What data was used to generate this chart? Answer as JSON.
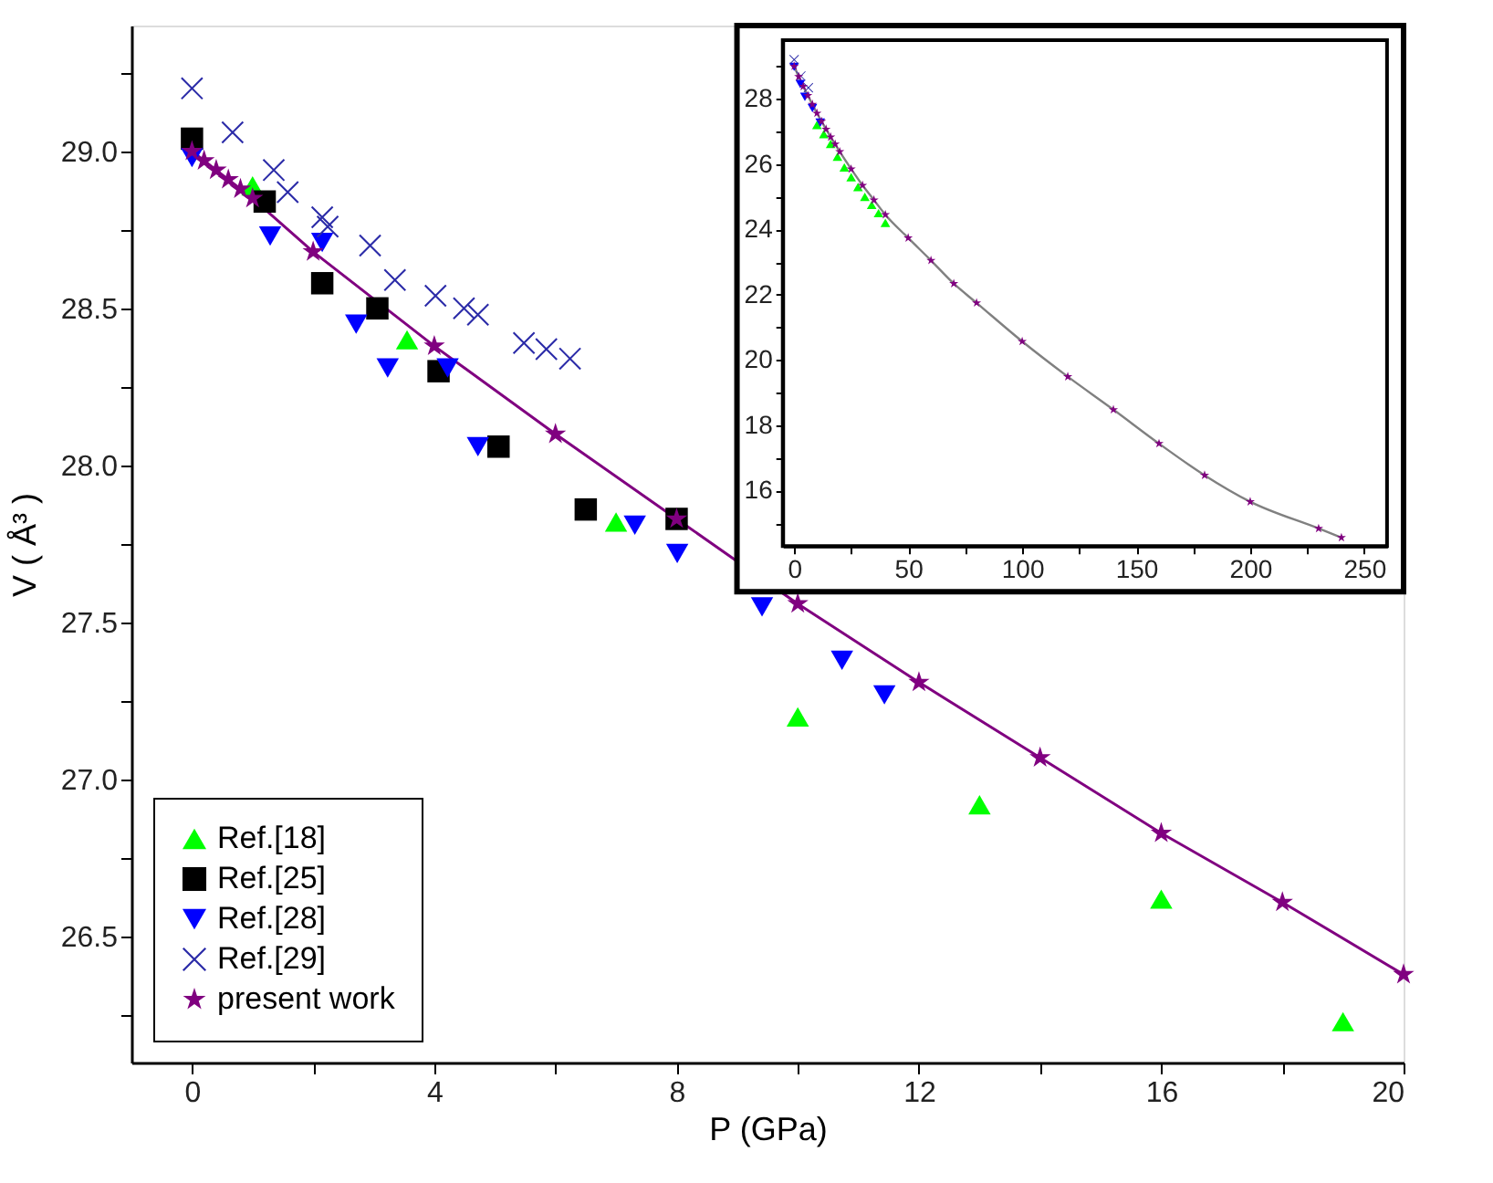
{
  "chart_data": [
    {
      "type": "scatter",
      "xlabel": "P (GPa)",
      "ylabel": "V ( Å³ )",
      "xlim": [
        -1,
        20
      ],
      "xticks": [
        0,
        {
          "value": 2,
          "label": null
        },
        4,
        {
          "value": 6,
          "label": null
        },
        8,
        {
          "value": 10,
          "label": null
        },
        12,
        {
          "value": 14,
          "label": null
        },
        16,
        {
          "value": 18,
          "label": null
        },
        20
      ],
      "ylim": [
        26.1,
        29.4
      ],
      "yticks": [
        {
          "value": 26.25,
          "label": null
        },
        {
          "value": 26.5,
          "label": "26.5"
        },
        {
          "value": 26.75,
          "label": null
        },
        {
          "value": 27,
          "label": "27.0"
        },
        {
          "value": 27.25,
          "label": null
        },
        {
          "value": 27.5,
          "label": "27.5"
        },
        {
          "value": 27.75,
          "label": null
        },
        {
          "value": 28,
          "label": "28.0"
        },
        {
          "value": 28.25,
          "label": null
        },
        {
          "value": 28.5,
          "label": "28.5"
        },
        {
          "value": 28.75,
          "label": null
        },
        {
          "value": 29,
          "label": "29.0"
        },
        {
          "value": 29.25,
          "label": null
        }
      ],
      "grid": false,
      "legend": "bottom left",
      "series": [
        {
          "name": "Ref.[18]",
          "type": "scatter",
          "marker": "triangle",
          "color": "#00ff00",
          "x": [
            1.0,
            3.55,
            7,
            10,
            13,
            16,
            19
          ],
          "values": [
            28.89,
            28.4,
            27.82,
            27.2,
            26.92,
            26.62,
            26.23
          ]
        },
        {
          "name": "Ref.[25]",
          "type": "scatter",
          "marker": "square",
          "color": "#000000",
          "x": [
            0,
            1.2,
            2.15,
            3.06,
            4.07,
            5.06,
            6.5,
            8.0
          ],
          "values": [
            29.04,
            28.84,
            28.58,
            28.5,
            28.3,
            28.06,
            27.86,
            27.83
          ]
        },
        {
          "name": "Ref.[28]",
          "type": "scatter",
          "marker": "triangle-down",
          "color": "#0000ff",
          "x": [
            0,
            1.29,
            2.15,
            2.71,
            3.23,
            4.22,
            4.72,
            7.31,
            8.01,
            9.41,
            10.73,
            11.43
          ],
          "values": [
            28.98,
            28.73,
            28.71,
            28.45,
            28.31,
            28.31,
            28.06,
            27.81,
            27.72,
            27.55,
            27.38,
            27.27
          ]
        },
        {
          "name": "Ref.[29]",
          "type": "scatter",
          "marker": "cross",
          "color": "#2b2ba8",
          "x": [
            0,
            0.67,
            1.35,
            1.58,
            2.15,
            2.24,
            2.94,
            3.35,
            4.02,
            4.49,
            4.72,
            5.48,
            5.85,
            6.24
          ],
          "values": [
            29.2,
            29.06,
            28.94,
            28.87,
            28.79,
            28.76,
            28.7,
            28.59,
            28.54,
            28.5,
            28.48,
            28.39,
            28.37,
            28.34
          ]
        },
        {
          "name": "present work",
          "type": "line",
          "marker": "star",
          "line_style": "solid",
          "color": "#800080",
          "x": [
            0,
            0.2,
            0.4,
            0.6,
            0.8,
            1,
            2,
            4,
            6,
            8,
            10,
            12,
            14,
            16,
            18,
            20
          ],
          "values": [
            29.0,
            28.97,
            28.94,
            28.91,
            28.88,
            28.85,
            28.68,
            28.38,
            28.1,
            27.83,
            27.56,
            27.31,
            27.07,
            26.83,
            26.61,
            26.38
          ]
        }
      ]
    },
    {
      "type": "scatter",
      "xlim": [
        -5,
        260
      ],
      "xticks": [
        0,
        {
          "value": 25,
          "label": null
        },
        50,
        {
          "value": 75,
          "label": null
        },
        100,
        {
          "value": 125,
          "label": null
        },
        150,
        {
          "value": 175,
          "label": null
        },
        200,
        {
          "value": 225,
          "label": null
        },
        250
      ],
      "ylim": [
        14.3,
        29.8
      ],
      "yticks": [
        {
          "value": 15,
          "label": null
        },
        16,
        {
          "value": 17,
          "label": null
        },
        18,
        {
          "value": 19,
          "label": null
        },
        20,
        {
          "value": 21,
          "label": null
        },
        22,
        {
          "value": 23,
          "label": null
        },
        24,
        {
          "value": 25,
          "label": null
        },
        26,
        {
          "value": 27,
          "label": null
        },
        28,
        {
          "value": 29,
          "label": null
        }
      ],
      "grid": false,
      "series": [
        {
          "type": "line",
          "marker": "none",
          "line_style": "solid",
          "color": "#808080",
          "x": [
            0,
            2,
            4,
            6,
            8,
            10,
            12,
            14,
            16,
            18,
            20,
            25,
            30,
            35,
            40,
            50,
            60,
            70,
            80,
            100,
            120,
            140,
            160,
            180,
            200,
            230,
            240
          ],
          "values": [
            29.0,
            28.68,
            28.38,
            28.1,
            27.83,
            27.56,
            27.31,
            27.07,
            26.83,
            26.61,
            26.38,
            25.85,
            25.35,
            24.9,
            24.45,
            23.74,
            23.05,
            22.34,
            21.75,
            20.57,
            19.49,
            18.48,
            17.44,
            16.47,
            15.66,
            14.84,
            14.56
          ]
        },
        {
          "type": "scatter",
          "marker": "triangle",
          "color": "#00ff00",
          "x": [
            10,
            13,
            16,
            19,
            22,
            25,
            28,
            31,
            34,
            37,
            40
          ],
          "values": [
            27.2,
            26.92,
            26.62,
            26.23,
            25.9,
            25.6,
            25.3,
            25.0,
            24.75,
            24.5,
            24.2
          ]
        },
        {
          "type": "scatter",
          "marker": "triangle-down",
          "color": "#0000ff",
          "x": [
            0,
            2.71,
            4.72,
            8.01,
            11.43
          ],
          "values": [
            28.98,
            28.45,
            28.06,
            27.72,
            27.27
          ]
        },
        {
          "type": "scatter",
          "marker": "cross",
          "color": "#2b2ba8",
          "x": [
            0,
            2.94,
            6.24
          ],
          "values": [
            29.2,
            28.7,
            28.34
          ]
        },
        {
          "type": "scatter",
          "marker": "star",
          "color": "#800080",
          "x": [
            0,
            2,
            4,
            6,
            8,
            10,
            12,
            14,
            16,
            18,
            20,
            25,
            30,
            35,
            40,
            50,
            60,
            70,
            80,
            100,
            120,
            140,
            160,
            180,
            200,
            230,
            240
          ],
          "values": [
            29.0,
            28.68,
            28.38,
            28.1,
            27.83,
            27.56,
            27.31,
            27.07,
            26.83,
            26.61,
            26.38,
            25.85,
            25.35,
            24.9,
            24.45,
            23.74,
            23.05,
            22.34,
            21.75,
            20.57,
            19.49,
            18.48,
            17.44,
            16.47,
            15.66,
            14.84,
            14.56
          ]
        }
      ]
    }
  ]
}
